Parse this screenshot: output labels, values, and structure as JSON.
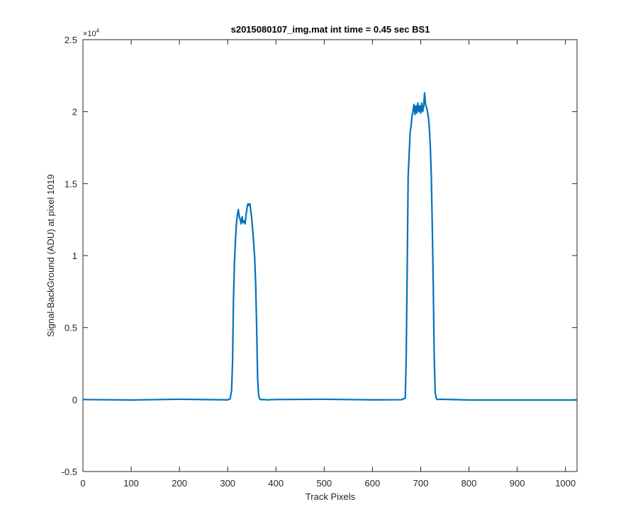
{
  "chart_data": {
    "type": "line",
    "title": "s2015080107_img.mat int time = 0.45 sec   BS1",
    "xlabel": "Track Pixels",
    "ylabel": "Signal-BackGround (ADU) at pixel 1019",
    "y_exponent_label": "×10",
    "y_exponent_power": "4",
    "xlim": [
      0,
      1024
    ],
    "ylim": [
      -5000,
      25000
    ],
    "x_ticks": [
      0,
      100,
      200,
      300,
      400,
      500,
      600,
      700,
      800,
      900,
      1000
    ],
    "x_tick_labels": [
      "0",
      "100",
      "200",
      "300",
      "400",
      "500",
      "600",
      "700",
      "800",
      "900",
      "1000"
    ],
    "y_ticks": [
      -5000,
      0,
      5000,
      10000,
      15000,
      20000,
      25000
    ],
    "y_tick_labels": [
      "-0.5",
      "0",
      "0.5",
      "1",
      "1.5",
      "2",
      "2.5"
    ],
    "grid": false,
    "line_color": "#0072BD",
    "series": [
      {
        "x": [
          0,
          100,
          200,
          300,
          305,
          308,
          310,
          312,
          314,
          316,
          318,
          320,
          322,
          324,
          326,
          328,
          330,
          332,
          334,
          336,
          338,
          340,
          342,
          344,
          346,
          348,
          350,
          352,
          354,
          356,
          358,
          360,
          362,
          364,
          366,
          368,
          370,
          372,
          374,
          380,
          400,
          500,
          600,
          660,
          668,
          670,
          672,
          674,
          676,
          678,
          680,
          682,
          684,
          686,
          688,
          690,
          692,
          694,
          696,
          698,
          700,
          702,
          704,
          706,
          708,
          710,
          712,
          714,
          716,
          718,
          720,
          722,
          724,
          726,
          728,
          730,
          732,
          734,
          740,
          800,
          900,
          1024
        ],
        "y": [
          0,
          -30,
          20,
          -20,
          50,
          600,
          2500,
          7000,
          9500,
          11000,
          12200,
          12800,
          13200,
          12700,
          12500,
          12200,
          12700,
          12300,
          12400,
          12200,
          12800,
          13300,
          13600,
          13500,
          13600,
          13100,
          12500,
          11700,
          10800,
          9800,
          8000,
          5000,
          1500,
          300,
          50,
          10,
          0,
          -20,
          10,
          -20,
          0,
          20,
          -20,
          -10,
          100,
          3000,
          9000,
          15500,
          17000,
          18500,
          19000,
          19700,
          20000,
          20500,
          19800,
          20400,
          19900,
          20600,
          20000,
          20400,
          19900,
          20600,
          20000,
          20300,
          21300,
          20500,
          20300,
          20000,
          19600,
          18800,
          17500,
          15500,
          12000,
          8000,
          3000,
          500,
          100,
          0,
          20,
          -30,
          -30,
          -30
        ]
      }
    ]
  }
}
